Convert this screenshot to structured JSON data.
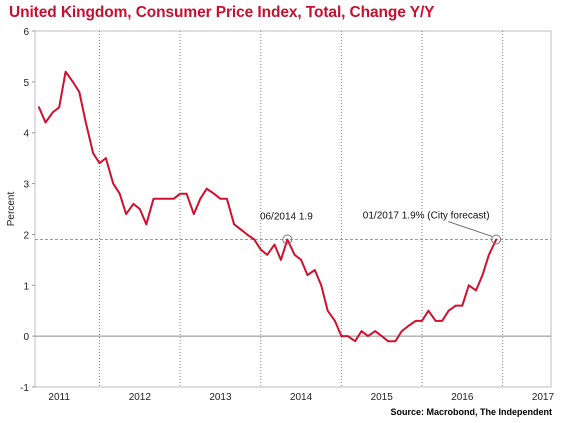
{
  "chart_data": {
    "type": "line",
    "title": "United Kingdom, Consumer Price Index, Total, Change Y/Y",
    "ylabel": "Percent",
    "xlabel": "",
    "source": "Source: Macrobond, The Independent",
    "ylim": [
      -1,
      6
    ],
    "yticks": [
      -1,
      0,
      1,
      2,
      3,
      4,
      5,
      6
    ],
    "xlim": [
      2010.7,
      2017.1
    ],
    "xticks": [
      {
        "label": "2011",
        "value": 2011.0
      },
      {
        "label": "2012",
        "value": 2012.0
      },
      {
        "label": "2013",
        "value": 2013.0
      },
      {
        "label": "2014",
        "value": 2014.0
      },
      {
        "label": "2015",
        "value": 2015.0
      },
      {
        "label": "2016",
        "value": 2016.0
      },
      {
        "label": "2017",
        "value": 2017.0
      }
    ],
    "vertical_dotted_lines": [
      2011.5,
      2012.5,
      2013.5,
      2014.5,
      2015.5,
      2016.5
    ],
    "reference_line": {
      "y": 1.9,
      "style": "dashed"
    },
    "line_color": "#d0102e",
    "series": [
      {
        "values": [
          {
            "x": 2010.75,
            "y": 4.5
          },
          {
            "x": 2010.83,
            "y": 4.2
          },
          {
            "x": 2010.92,
            "y": 4.4
          },
          {
            "x": 2011.0,
            "y": 4.5
          },
          {
            "x": 2011.08,
            "y": 5.2
          },
          {
            "x": 2011.17,
            "y": 5.0
          },
          {
            "x": 2011.25,
            "y": 4.8
          },
          {
            "x": 2011.33,
            "y": 4.2
          },
          {
            "x": 2011.42,
            "y": 3.6
          },
          {
            "x": 2011.5,
            "y": 3.4
          },
          {
            "x": 2011.58,
            "y": 3.5
          },
          {
            "x": 2011.67,
            "y": 3.0
          },
          {
            "x": 2011.75,
            "y": 2.8
          },
          {
            "x": 2011.83,
            "y": 2.4
          },
          {
            "x": 2011.92,
            "y": 2.6
          },
          {
            "x": 2012.0,
            "y": 2.5
          },
          {
            "x": 2012.08,
            "y": 2.2
          },
          {
            "x": 2012.17,
            "y": 2.7
          },
          {
            "x": 2012.25,
            "y": 2.7
          },
          {
            "x": 2012.33,
            "y": 2.7
          },
          {
            "x": 2012.42,
            "y": 2.7
          },
          {
            "x": 2012.5,
            "y": 2.8
          },
          {
            "x": 2012.58,
            "y": 2.8
          },
          {
            "x": 2012.67,
            "y": 2.4
          },
          {
            "x": 2012.75,
            "y": 2.7
          },
          {
            "x": 2012.83,
            "y": 2.9
          },
          {
            "x": 2012.92,
            "y": 2.8
          },
          {
            "x": 2013.0,
            "y": 2.7
          },
          {
            "x": 2013.08,
            "y": 2.7
          },
          {
            "x": 2013.17,
            "y": 2.2
          },
          {
            "x": 2013.25,
            "y": 2.1
          },
          {
            "x": 2013.33,
            "y": 2.0
          },
          {
            "x": 2013.42,
            "y": 1.9
          },
          {
            "x": 2013.5,
            "y": 1.7
          },
          {
            "x": 2013.58,
            "y": 1.6
          },
          {
            "x": 2013.67,
            "y": 1.8
          },
          {
            "x": 2013.75,
            "y": 1.5
          },
          {
            "x": 2013.83,
            "y": 1.9
          },
          {
            "x": 2013.92,
            "y": 1.6
          },
          {
            "x": 2014.0,
            "y": 1.5
          },
          {
            "x": 2014.08,
            "y": 1.2
          },
          {
            "x": 2014.17,
            "y": 1.3
          },
          {
            "x": 2014.25,
            "y": 1.0
          },
          {
            "x": 2014.33,
            "y": 0.5
          },
          {
            "x": 2014.42,
            "y": 0.3
          },
          {
            "x": 2014.5,
            "y": 0.0
          },
          {
            "x": 2014.58,
            "y": 0.0
          },
          {
            "x": 2014.67,
            "y": -0.1
          },
          {
            "x": 2014.75,
            "y": 0.1
          },
          {
            "x": 2014.83,
            "y": 0.0
          },
          {
            "x": 2014.92,
            "y": 0.1
          },
          {
            "x": 2015.0,
            "y": 0.0
          },
          {
            "x": 2015.08,
            "y": -0.1
          },
          {
            "x": 2015.17,
            "y": -0.1
          },
          {
            "x": 2015.25,
            "y": 0.1
          },
          {
            "x": 2015.33,
            "y": 0.2
          },
          {
            "x": 2015.42,
            "y": 0.3
          },
          {
            "x": 2015.5,
            "y": 0.3
          },
          {
            "x": 2015.58,
            "y": 0.5
          },
          {
            "x": 2015.67,
            "y": 0.3
          },
          {
            "x": 2015.75,
            "y": 0.3
          },
          {
            "x": 2015.83,
            "y": 0.5
          },
          {
            "x": 2015.92,
            "y": 0.6
          },
          {
            "x": 2016.0,
            "y": 0.6
          },
          {
            "x": 2016.08,
            "y": 1.0
          },
          {
            "x": 2016.17,
            "y": 0.9
          },
          {
            "x": 2016.25,
            "y": 1.2
          },
          {
            "x": 2016.33,
            "y": 1.6
          },
          {
            "x": 2016.42,
            "y": 1.9
          }
        ]
      }
    ],
    "annotations": [
      {
        "text": "06/2014 1.9",
        "x": 2013.83,
        "y": 1.9
      },
      {
        "text": "01/2017 1.9% (City forecast)",
        "x": 2016.42,
        "y": 1.9
      }
    ]
  }
}
